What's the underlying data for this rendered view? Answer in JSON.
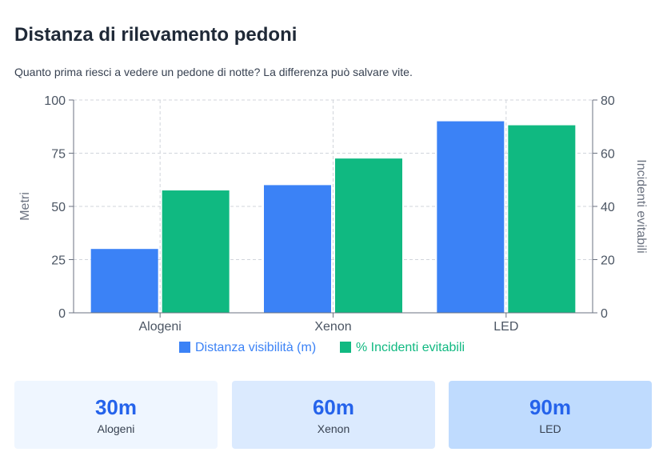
{
  "page": {
    "title": "Distanza di rilevamento pedoni",
    "subtitle": "Quanto prima riesci a vedere un pedone di notte? La differenza può salvare vite."
  },
  "colors": {
    "series_1": "#3b82f6",
    "series_2": "#10b981",
    "card_value": "#2563eb"
  },
  "chart_data": {
    "type": "bar",
    "categories": [
      "Alogeni",
      "Xenon",
      "LED"
    ],
    "series": [
      {
        "name": "Distanza visibilità (m)",
        "values": [
          30,
          60,
          90
        ],
        "axis": "left"
      },
      {
        "name": "% Incidenti evitabili",
        "values": [
          46,
          58,
          70.5
        ],
        "axis": "right"
      }
    ],
    "ylabel": "Metri",
    "ylabel_right": "Incidenti evitabili",
    "ylim": [
      0,
      100
    ],
    "ylim_right": [
      0,
      80
    ],
    "yticks": [
      "0",
      "25",
      "50",
      "75",
      "100"
    ],
    "yticks_right": [
      "0",
      "20",
      "40",
      "60",
      "80"
    ],
    "grid": true,
    "legend_position": "bottom"
  },
  "cards": [
    {
      "value": "30m",
      "label": "Alogeni"
    },
    {
      "value": "60m",
      "label": "Xenon"
    },
    {
      "value": "90m",
      "label": "LED"
    }
  ]
}
